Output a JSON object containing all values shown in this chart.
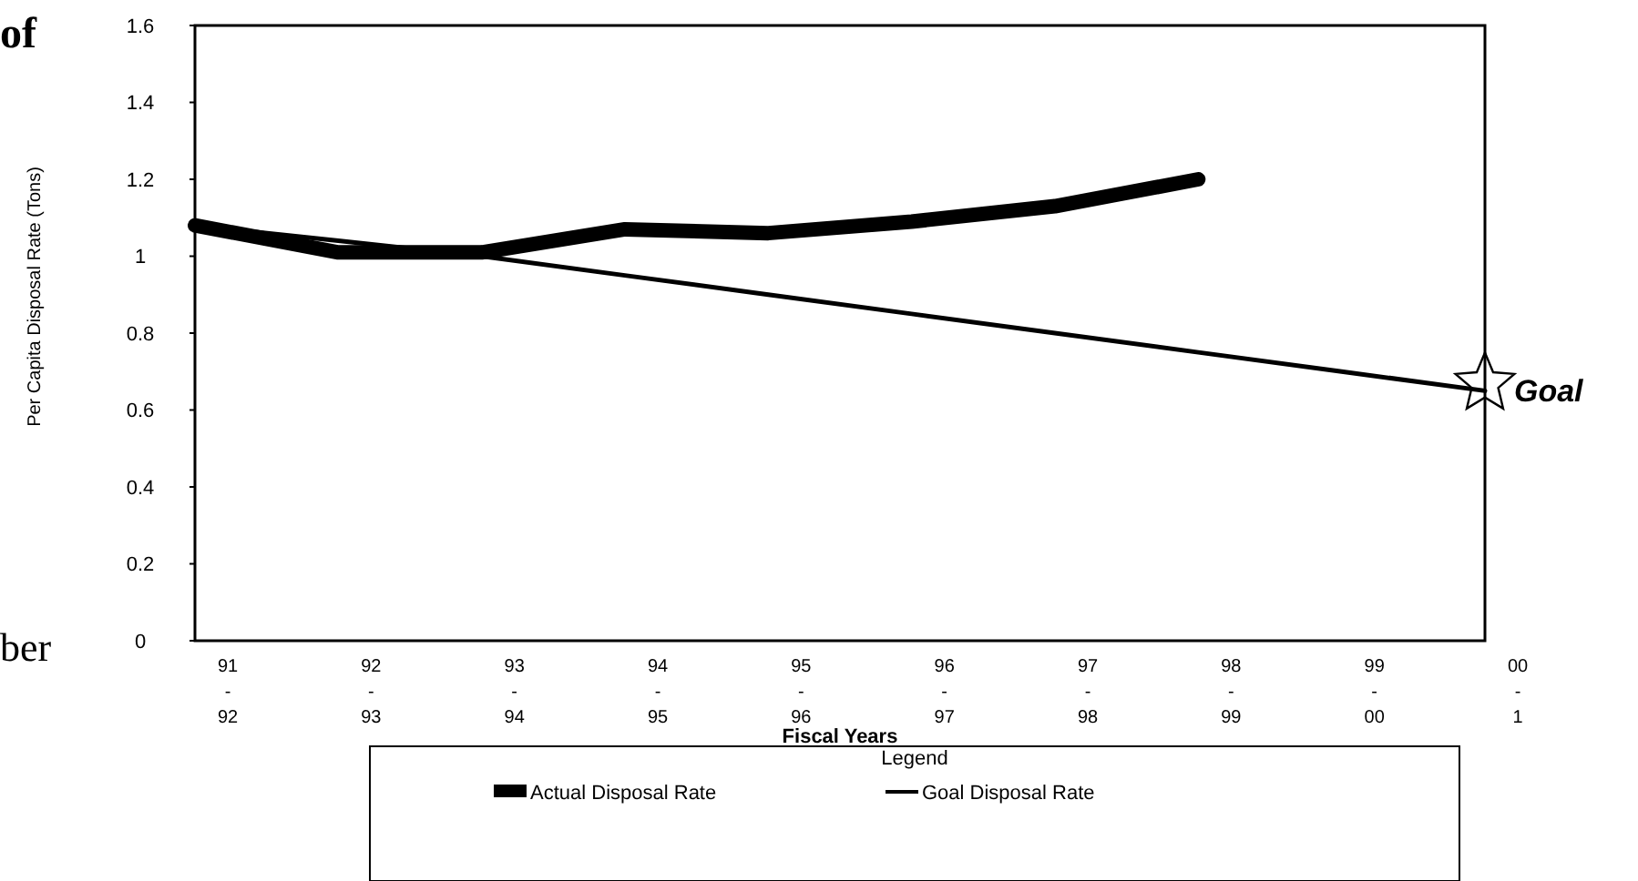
{
  "chart_data": {
    "type": "line",
    "xlabel": "Fiscal Years",
    "ylabel": "Per Capita Disposal Rate (Tons)",
    "legend_title": "Legend",
    "categories": [
      "91-92",
      "92-93",
      "93-94",
      "94-95",
      "95-96",
      "96-97",
      "97-98",
      "98-99",
      "99-00",
      "00-1"
    ],
    "series": [
      {
        "name": "Actual Disposal Rate",
        "color": "#000000",
        "values": [
          1.08,
          1.01,
          1.01,
          1.07,
          1.06,
          1.09,
          1.13,
          1.2,
          null,
          null
        ]
      },
      {
        "name": "Goal Disposal Rate",
        "color": "#000000",
        "values": [
          1.08,
          1.04,
          1.0,
          0.95,
          0.9,
          0.85,
          0.8,
          0.75,
          0.7,
          0.65
        ]
      }
    ],
    "ylim": [
      0,
      1.6
    ],
    "yticks": [
      0,
      0.2,
      0.4,
      0.6,
      0.8,
      1,
      1.2,
      1.4,
      1.6
    ],
    "grid": false,
    "legend": "bottom",
    "marker": "none",
    "line_style": "solid",
    "annotations": [
      "Goal",
      "of",
      "ber"
    ]
  }
}
